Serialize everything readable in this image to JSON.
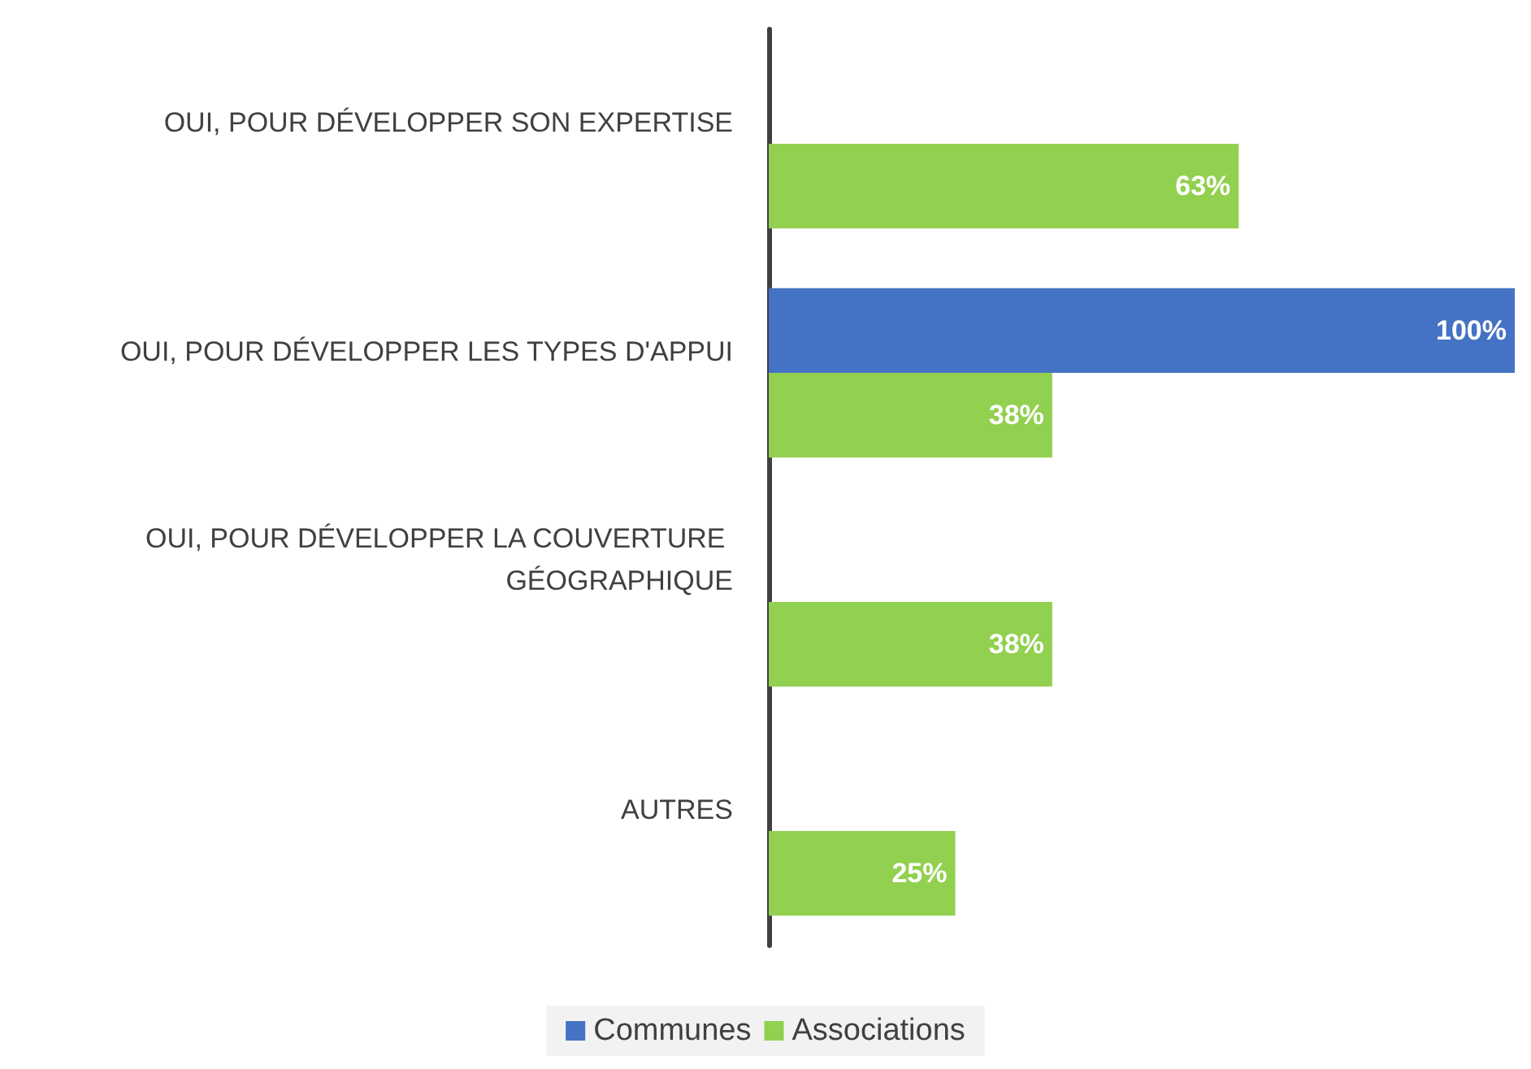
{
  "chart_data": {
    "type": "bar",
    "orientation": "horizontal",
    "categories": [
      "OUI, POUR DÉVELOPPER SON EXPERTISE",
      "OUI, POUR DÉVELOPPER LES TYPES D'APPUI",
      "OUI, POUR DÉVELOPPER LA COUVERTURE GÉOGRAPHIQUE",
      "AUTRES"
    ],
    "series": [
      {
        "name": "Communes",
        "color": "#4472c4",
        "values": [
          null,
          100,
          null,
          null
        ],
        "value_labels": [
          null,
          "100%",
          null,
          null
        ]
      },
      {
        "name": "Associations",
        "color": "#92d050",
        "values": [
          63,
          38,
          38,
          25
        ],
        "value_labels": [
          "63%",
          "38%",
          "38%",
          "25%"
        ]
      }
    ],
    "xlim": [
      0,
      100
    ],
    "tick_labels": "y",
    "grid": false,
    "legend": "bottom"
  }
}
